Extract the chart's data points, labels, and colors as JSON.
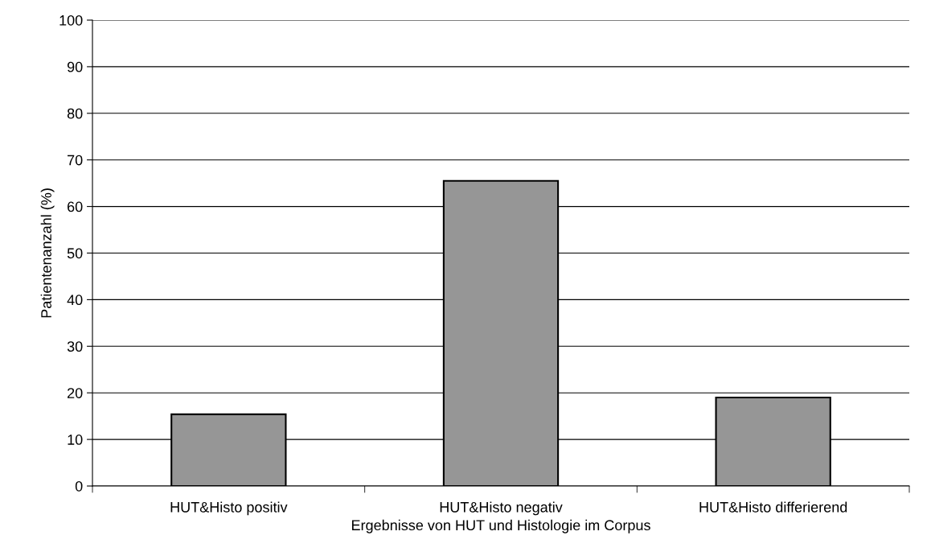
{
  "chart_data": {
    "type": "bar",
    "xlabel": "Ergebnisse von HUT und Histologie im Corpus",
    "ylabel": "Patientenanzahl (%)",
    "categories": [
      "HUT&Histo positiv",
      "HUT&Histo negativ",
      "HUT&Histo differierend"
    ],
    "values": [
      15.4,
      65.5,
      19.0
    ],
    "color": "#969696",
    "ylim": [
      0,
      100
    ],
    "yticks": [
      0,
      10,
      20,
      30,
      40,
      50,
      60,
      70,
      80,
      90,
      100
    ],
    "grid": "y",
    "legend": false
  }
}
